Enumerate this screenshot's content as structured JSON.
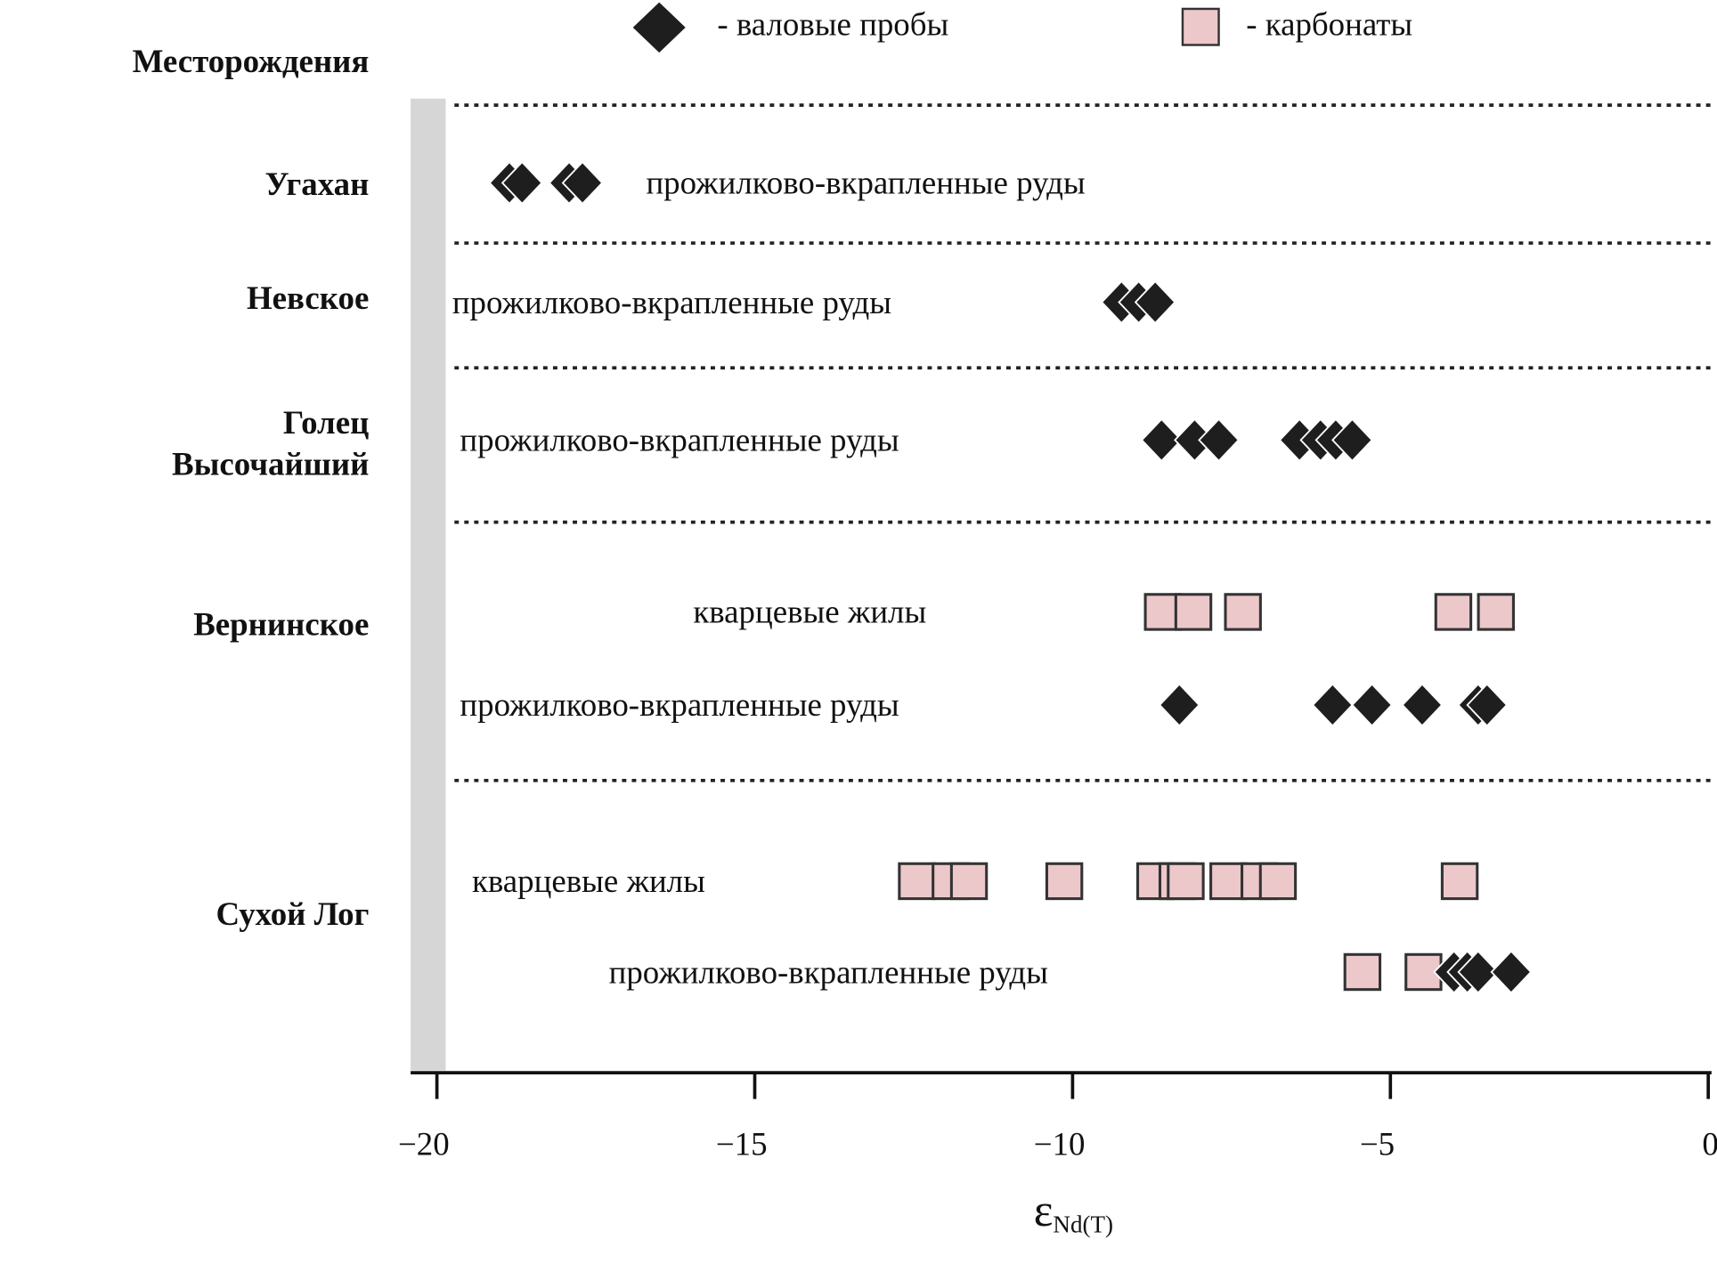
{
  "chart_data": {
    "type": "scatter",
    "title": "",
    "xlabel": "εNd(T)",
    "xlabel_main": "ε",
    "xlabel_sub": "Nd(T)",
    "xlim": [
      -20,
      0
    ],
    "xticks": [
      -20,
      -15,
      -10,
      -5,
      0
    ],
    "xtick_labels": [
      "−20",
      "−15",
      "−10",
      "−5",
      "0"
    ],
    "grid": "dotted horizontal separators between deposits",
    "legend_position": "top",
    "y_header": "Месторождения",
    "legend": [
      {
        "marker": "diamond",
        "color": "#1e1e1e",
        "label": "- валовые пробы"
      },
      {
        "marker": "square",
        "color": "#ecc8cb",
        "label": "- карбонаты"
      }
    ],
    "deposits": [
      {
        "name": "Угахан",
        "rows": [
          {
            "label": "прожилково-вкрапленные руды",
            "series": [
              {
                "type": "bulk",
                "values": [
                  -18.86,
                  -18.66,
                  -17.92,
                  -17.71
                ]
              }
            ]
          }
        ]
      },
      {
        "name": "Невское",
        "rows": [
          {
            "label": "прожилково-вкрапленные руды",
            "series": [
              {
                "type": "bulk",
                "values": [
                  -9.23,
                  -8.96,
                  -8.7
                ]
              }
            ]
          }
        ]
      },
      {
        "name": "Голец\nВысочайший",
        "name_lines": [
          "Голец",
          "Высочайший"
        ],
        "rows": [
          {
            "label": "прожилково-вкрапленные руды",
            "series": [
              {
                "type": "bulk",
                "values": [
                  -8.6,
                  -8.08,
                  -7.7,
                  -6.43,
                  -6.1,
                  -5.86,
                  -5.6
                ]
              }
            ]
          }
        ]
      },
      {
        "name": "Вернинское",
        "rows": [
          {
            "label": "кварцевые жилы",
            "series": [
              {
                "type": "carbonate",
                "values": [
                  -8.58,
                  -8.1,
                  -7.32,
                  -4.01,
                  -3.34
                ]
              }
            ]
          },
          {
            "label": "прожилково-вкрапленные руды",
            "series": [
              {
                "type": "bulk",
                "values": [
                  -8.32,
                  -5.91,
                  -5.29,
                  -4.5,
                  -3.62,
                  -3.48
                ]
              }
            ]
          }
        ]
      },
      {
        "name": "Сухой Лог",
        "rows": [
          {
            "label": "кварцевые жилы",
            "series": [
              {
                "type": "carbonate",
                "values": [
                  -12.45,
                  -11.92,
                  -11.63,
                  -10.13,
                  -8.7,
                  -8.35,
                  -8.22,
                  -7.55,
                  -7.06,
                  -6.77,
                  -3.91
                ]
              }
            ]
          },
          {
            "label": "прожилково-вкрапленные руды",
            "series": [
              {
                "type": "carbonate",
                "values": [
                  -5.44,
                  -4.48
                ]
              },
              {
                "type": "bulk",
                "values": [
                  -4.0,
                  -3.79,
                  -3.62,
                  -3.1
                ]
              }
            ]
          }
        ]
      }
    ]
  }
}
